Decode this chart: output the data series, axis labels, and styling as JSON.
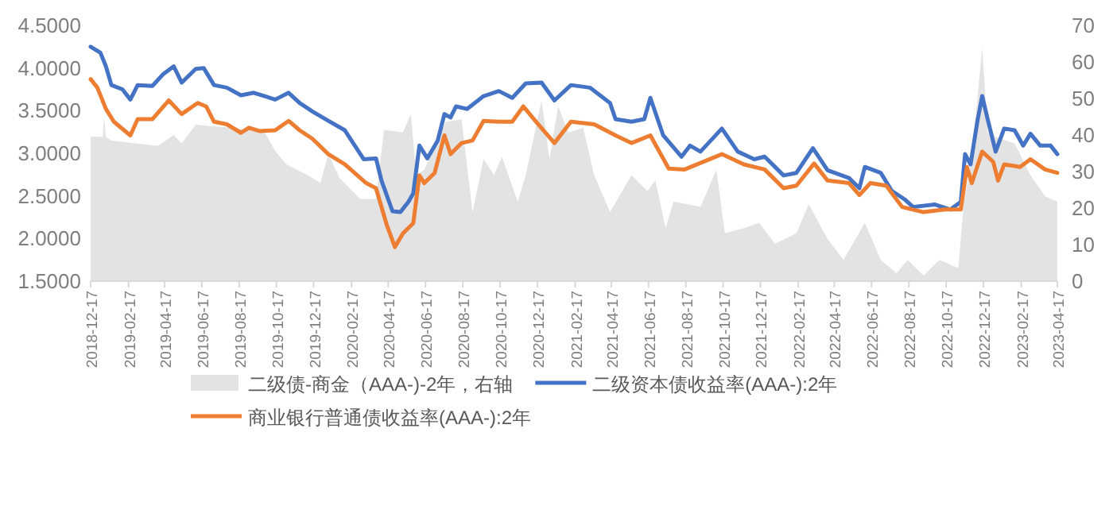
{
  "chart_data": {
    "type": "line",
    "xlim": [
      "2018-12-17",
      "2023-04-17"
    ],
    "xticks": [
      "2018-12-17",
      "2019-02-17",
      "2019-04-17",
      "2019-06-17",
      "2019-08-17",
      "2019-10-17",
      "2019-12-17",
      "2020-02-17",
      "2020-04-17",
      "2020-06-17",
      "2020-08-17",
      "2020-10-17",
      "2020-12-17",
      "2021-02-17",
      "2021-04-17",
      "2021-06-17",
      "2021-08-17",
      "2021-10-17",
      "2021-12-17",
      "2022-02-17",
      "2022-04-17",
      "2022-06-17",
      "2022-08-17",
      "2022-10-17",
      "2022-12-17",
      "2023-02-17",
      "2023-04-17"
    ],
    "ylim": [
      1.5,
      4.5
    ],
    "yticks": [
      {
        "value": 1.5,
        "label": "1.5000"
      },
      {
        "value": 2,
        "label": "2.0000"
      },
      {
        "value": 2.5,
        "label": "2.5000"
      },
      {
        "value": 3,
        "label": "3.0000"
      },
      {
        "value": 3.5,
        "label": "3.5000"
      },
      {
        "value": 4,
        "label": "4.0000"
      },
      {
        "value": 4.5,
        "label": "4.5000"
      }
    ],
    "y2lim": [
      0,
      70
    ],
    "y2ticks": [
      0,
      10,
      20,
      30,
      40,
      50,
      60,
      70
    ],
    "legend": "bottom",
    "series": [
      {
        "name": "二级债-商金（AAA-)-2年，右轴",
        "type": "area",
        "axis": "y2",
        "color": "#e3e3e3",
        "x": [
          "2018-12-17",
          "2019-01-06",
          "2019-01-08",
          "2019-01-11",
          "2019-01-20",
          "2019-04-06",
          "2019-05-02",
          "2019-05-15",
          "2019-06-07",
          "2019-07-02",
          "2019-08-06",
          "2019-09-28",
          "2019-10-15",
          "2019-11-02",
          "2019-12-07",
          "2019-12-28",
          "2020-01-10",
          "2020-01-28",
          "2020-03-02",
          "2020-03-28",
          "2020-04-10",
          "2020-05-11",
          "2020-05-24",
          "2020-06-02",
          "2020-06-15",
          "2020-07-20",
          "2020-08-15",
          "2020-09-02",
          "2020-09-20",
          "2020-10-07",
          "2020-10-20",
          "2020-11-15",
          "2020-11-28",
          "2020-12-24",
          "2021-01-06",
          "2021-01-20",
          "2021-02-06",
          "2021-03-02",
          "2021-03-20",
          "2021-04-15",
          "2021-05-20",
          "2021-06-15",
          "2021-06-28",
          "2021-07-15",
          "2021-07-28",
          "2021-09-10",
          "2021-10-06",
          "2021-10-20",
          "2021-11-20",
          "2021-12-15",
          "2022-01-10",
          "2022-02-14",
          "2022-03-06",
          "2022-04-06",
          "2022-05-02",
          "2022-06-06",
          "2022-07-02",
          "2022-07-28",
          "2022-08-15",
          "2022-09-10",
          "2022-10-06",
          "2022-11-06",
          "2022-11-15",
          "2022-11-28",
          "2022-12-15",
          "2022-12-24",
          "2023-01-10",
          "2023-02-06",
          "2023-03-04",
          "2023-03-28",
          "2023-04-17"
        ],
        "values": [
          39.5,
          39.5,
          45,
          39.5,
          38.5,
          37,
          40,
          37.7,
          42.8,
          42.4,
          42,
          40.7,
          35.6,
          32,
          29,
          26.9,
          34.8,
          28.3,
          22.5,
          22.5,
          41.4,
          40.7,
          45.7,
          29,
          30.5,
          43.6,
          44.3,
          18.9,
          33.4,
          29,
          34,
          21.8,
          29,
          49.4,
          33.4,
          47.9,
          40.7,
          42,
          29,
          18.9,
          29,
          24.7,
          27.6,
          14.5,
          21.8,
          20.3,
          30.5,
          13.1,
          14.5,
          16,
          10.2,
          13.1,
          21.1,
          11.6,
          5.8,
          16,
          5.8,
          2.2,
          5.8,
          1.5,
          5.8,
          3.6,
          21.8,
          33.4,
          63.9,
          40.7,
          39.2,
          37.7,
          29,
          23.2,
          21.8
        ]
      },
      {
        "name": "二级资本债收益率(AAA-):2年",
        "type": "line",
        "color": "#4472c4",
        "x": [
          "2018-12-17",
          "2019-01-02",
          "2019-01-11",
          "2019-01-20",
          "2019-02-07",
          "2019-02-20",
          "2019-03-04",
          "2019-03-28",
          "2019-04-15",
          "2019-05-02",
          "2019-05-15",
          "2019-06-07",
          "2019-06-20",
          "2019-07-07",
          "2019-07-28",
          "2019-08-20",
          "2019-09-10",
          "2019-09-28",
          "2019-10-15",
          "2019-11-06",
          "2019-11-24",
          "2019-12-15",
          "2020-01-10",
          "2020-02-06",
          "2020-03-08",
          "2020-03-28",
          "2020-04-06",
          "2020-04-24",
          "2020-05-07",
          "2020-05-20",
          "2020-05-28",
          "2020-06-07",
          "2020-06-20",
          "2020-07-07",
          "2020-07-18",
          "2020-07-28",
          "2020-08-06",
          "2020-08-24",
          "2020-09-20",
          "2020-10-15",
          "2020-11-06",
          "2020-11-28",
          "2020-12-24",
          "2021-01-14",
          "2021-02-10",
          "2021-03-13",
          "2021-04-15",
          "2021-04-24",
          "2021-05-20",
          "2021-06-10",
          "2021-06-20",
          "2021-07-11",
          "2021-08-10",
          "2021-08-24",
          "2021-09-10",
          "2021-10-15",
          "2021-11-10",
          "2021-12-07",
          "2021-12-24",
          "2022-01-24",
          "2022-02-14",
          "2022-03-13",
          "2022-04-06",
          "2022-05-11",
          "2022-05-28",
          "2022-06-06",
          "2022-07-02",
          "2022-07-20",
          "2022-08-10",
          "2022-08-24",
          "2022-09-28",
          "2022-10-24",
          "2022-11-10",
          "2022-11-17",
          "2022-11-26",
          "2022-12-07",
          "2022-12-15",
          "2022-12-24",
          "2023-01-06",
          "2023-01-20",
          "2023-02-06",
          "2023-02-20",
          "2023-03-04",
          "2023-03-20",
          "2023-04-06",
          "2023-04-17"
        ],
        "values": [
          4.25,
          4.18,
          4.02,
          3.8,
          3.75,
          3.63,
          3.8,
          3.79,
          3.93,
          4.02,
          3.83,
          3.99,
          4.0,
          3.8,
          3.77,
          3.68,
          3.71,
          3.67,
          3.63,
          3.71,
          3.59,
          3.49,
          3.38,
          3.27,
          2.93,
          2.94,
          2.68,
          2.32,
          2.31,
          2.43,
          2.53,
          3.09,
          2.94,
          3.15,
          3.46,
          3.42,
          3.55,
          3.52,
          3.67,
          3.73,
          3.65,
          3.82,
          3.83,
          3.62,
          3.8,
          3.77,
          3.59,
          3.4,
          3.37,
          3.4,
          3.65,
          3.21,
          2.96,
          3.09,
          3.02,
          3.29,
          3.02,
          2.93,
          2.96,
          2.74,
          2.77,
          3.06,
          2.8,
          2.71,
          2.59,
          2.84,
          2.77,
          2.56,
          2.46,
          2.37,
          2.4,
          2.34,
          2.43,
          2.99,
          2.87,
          3.37,
          3.67,
          3.4,
          3.02,
          3.29,
          3.27,
          3.09,
          3.23,
          3.09,
          3.09,
          2.99
        ]
      },
      {
        "name": "商业银行普通债收益率(AAA-):2年",
        "type": "line",
        "color": "#ed7d31",
        "x": [
          "2018-12-17",
          "2018-12-28",
          "2019-01-11",
          "2019-01-24",
          "2019-02-20",
          "2019-03-04",
          "2019-03-28",
          "2019-04-24",
          "2019-05-15",
          "2019-06-10",
          "2019-06-24",
          "2019-07-07",
          "2019-07-28",
          "2019-08-20",
          "2019-09-02",
          "2019-09-20",
          "2019-10-15",
          "2019-11-06",
          "2019-11-24",
          "2019-12-15",
          "2020-01-10",
          "2020-02-06",
          "2020-03-12",
          "2020-03-28",
          "2020-04-15",
          "2020-04-28",
          "2020-05-11",
          "2020-05-28",
          "2020-06-07",
          "2020-06-15",
          "2020-07-02",
          "2020-07-18",
          "2020-07-28",
          "2020-08-15",
          "2020-09-02",
          "2020-09-20",
          "2020-10-15",
          "2020-11-06",
          "2020-11-24",
          "2020-12-15",
          "2021-01-14",
          "2021-02-10",
          "2021-03-20",
          "2021-04-24",
          "2021-05-20",
          "2021-06-20",
          "2021-07-20",
          "2021-08-15",
          "2021-10-15",
          "2021-11-20",
          "2021-12-24",
          "2022-01-24",
          "2022-02-14",
          "2022-03-15",
          "2022-04-06",
          "2022-05-11",
          "2022-05-28",
          "2022-06-15",
          "2022-07-11",
          "2022-08-06",
          "2022-09-10",
          "2022-10-15",
          "2022-11-10",
          "2022-11-20",
          "2022-11-28",
          "2022-12-15",
          "2023-01-02",
          "2023-01-10",
          "2023-01-20",
          "2023-02-15",
          "2023-03-04",
          "2023-03-28",
          "2023-04-17"
        ],
        "values": [
          3.87,
          3.77,
          3.52,
          3.37,
          3.21,
          3.4,
          3.4,
          3.62,
          3.46,
          3.59,
          3.55,
          3.37,
          3.34,
          3.24,
          3.3,
          3.26,
          3.27,
          3.38,
          3.27,
          3.17,
          2.99,
          2.87,
          2.65,
          2.59,
          2.15,
          1.9,
          2.06,
          2.18,
          2.74,
          2.65,
          2.77,
          3.21,
          2.99,
          3.12,
          3.15,
          3.38,
          3.37,
          3.37,
          3.55,
          3.37,
          3.12,
          3.37,
          3.34,
          3.21,
          3.12,
          3.21,
          2.82,
          2.81,
          2.99,
          2.87,
          2.81,
          2.59,
          2.62,
          2.88,
          2.68,
          2.65,
          2.51,
          2.65,
          2.62,
          2.37,
          2.31,
          2.34,
          2.34,
          2.84,
          2.65,
          3.02,
          2.9,
          2.68,
          2.87,
          2.84,
          2.93,
          2.81,
          2.77
        ]
      }
    ]
  }
}
